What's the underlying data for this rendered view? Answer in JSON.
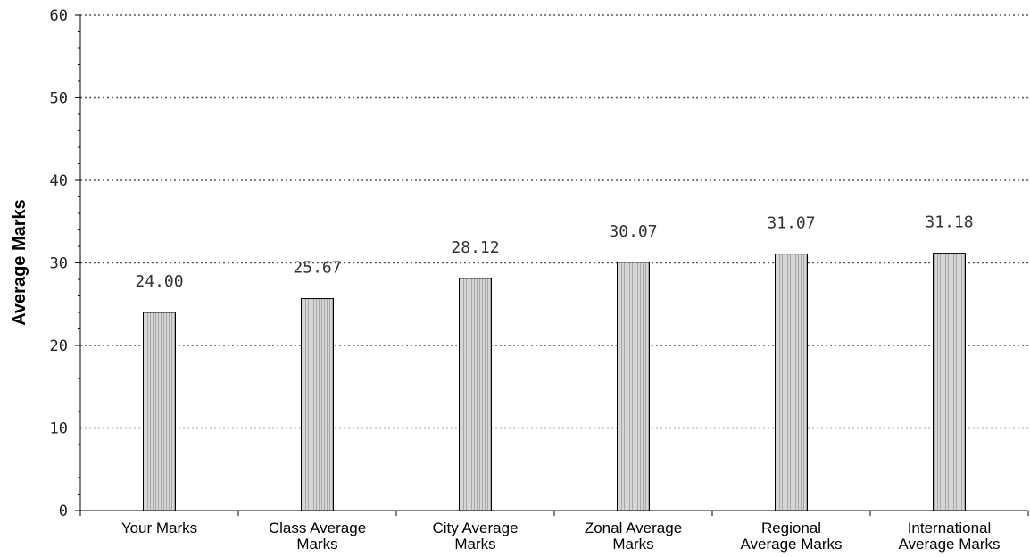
{
  "chart_data": {
    "type": "bar",
    "title": "",
    "xlabel": "",
    "ylabel": "Average Marks",
    "categories": [
      [
        "Your Marks"
      ],
      [
        "Class Average",
        "Marks"
      ],
      [
        "City Average",
        "Marks"
      ],
      [
        "Zonal Average",
        "Marks"
      ],
      [
        "Regional",
        "Average Marks"
      ],
      [
        "International",
        "Average Marks"
      ]
    ],
    "values": [
      24.0,
      25.67,
      28.12,
      30.07,
      31.07,
      31.18
    ],
    "value_labels": [
      "24.00",
      "25.67",
      "28.12",
      "30.07",
      "31.07",
      "31.18"
    ],
    "ylim": [
      0,
      60
    ],
    "yticks": [
      0,
      10,
      20,
      30,
      40,
      50,
      60
    ],
    "grid": true,
    "legend": "none",
    "colors": {
      "bar_fill": "#c8c8c8",
      "bar_stroke": "#000000",
      "grid": "#555555"
    }
  }
}
